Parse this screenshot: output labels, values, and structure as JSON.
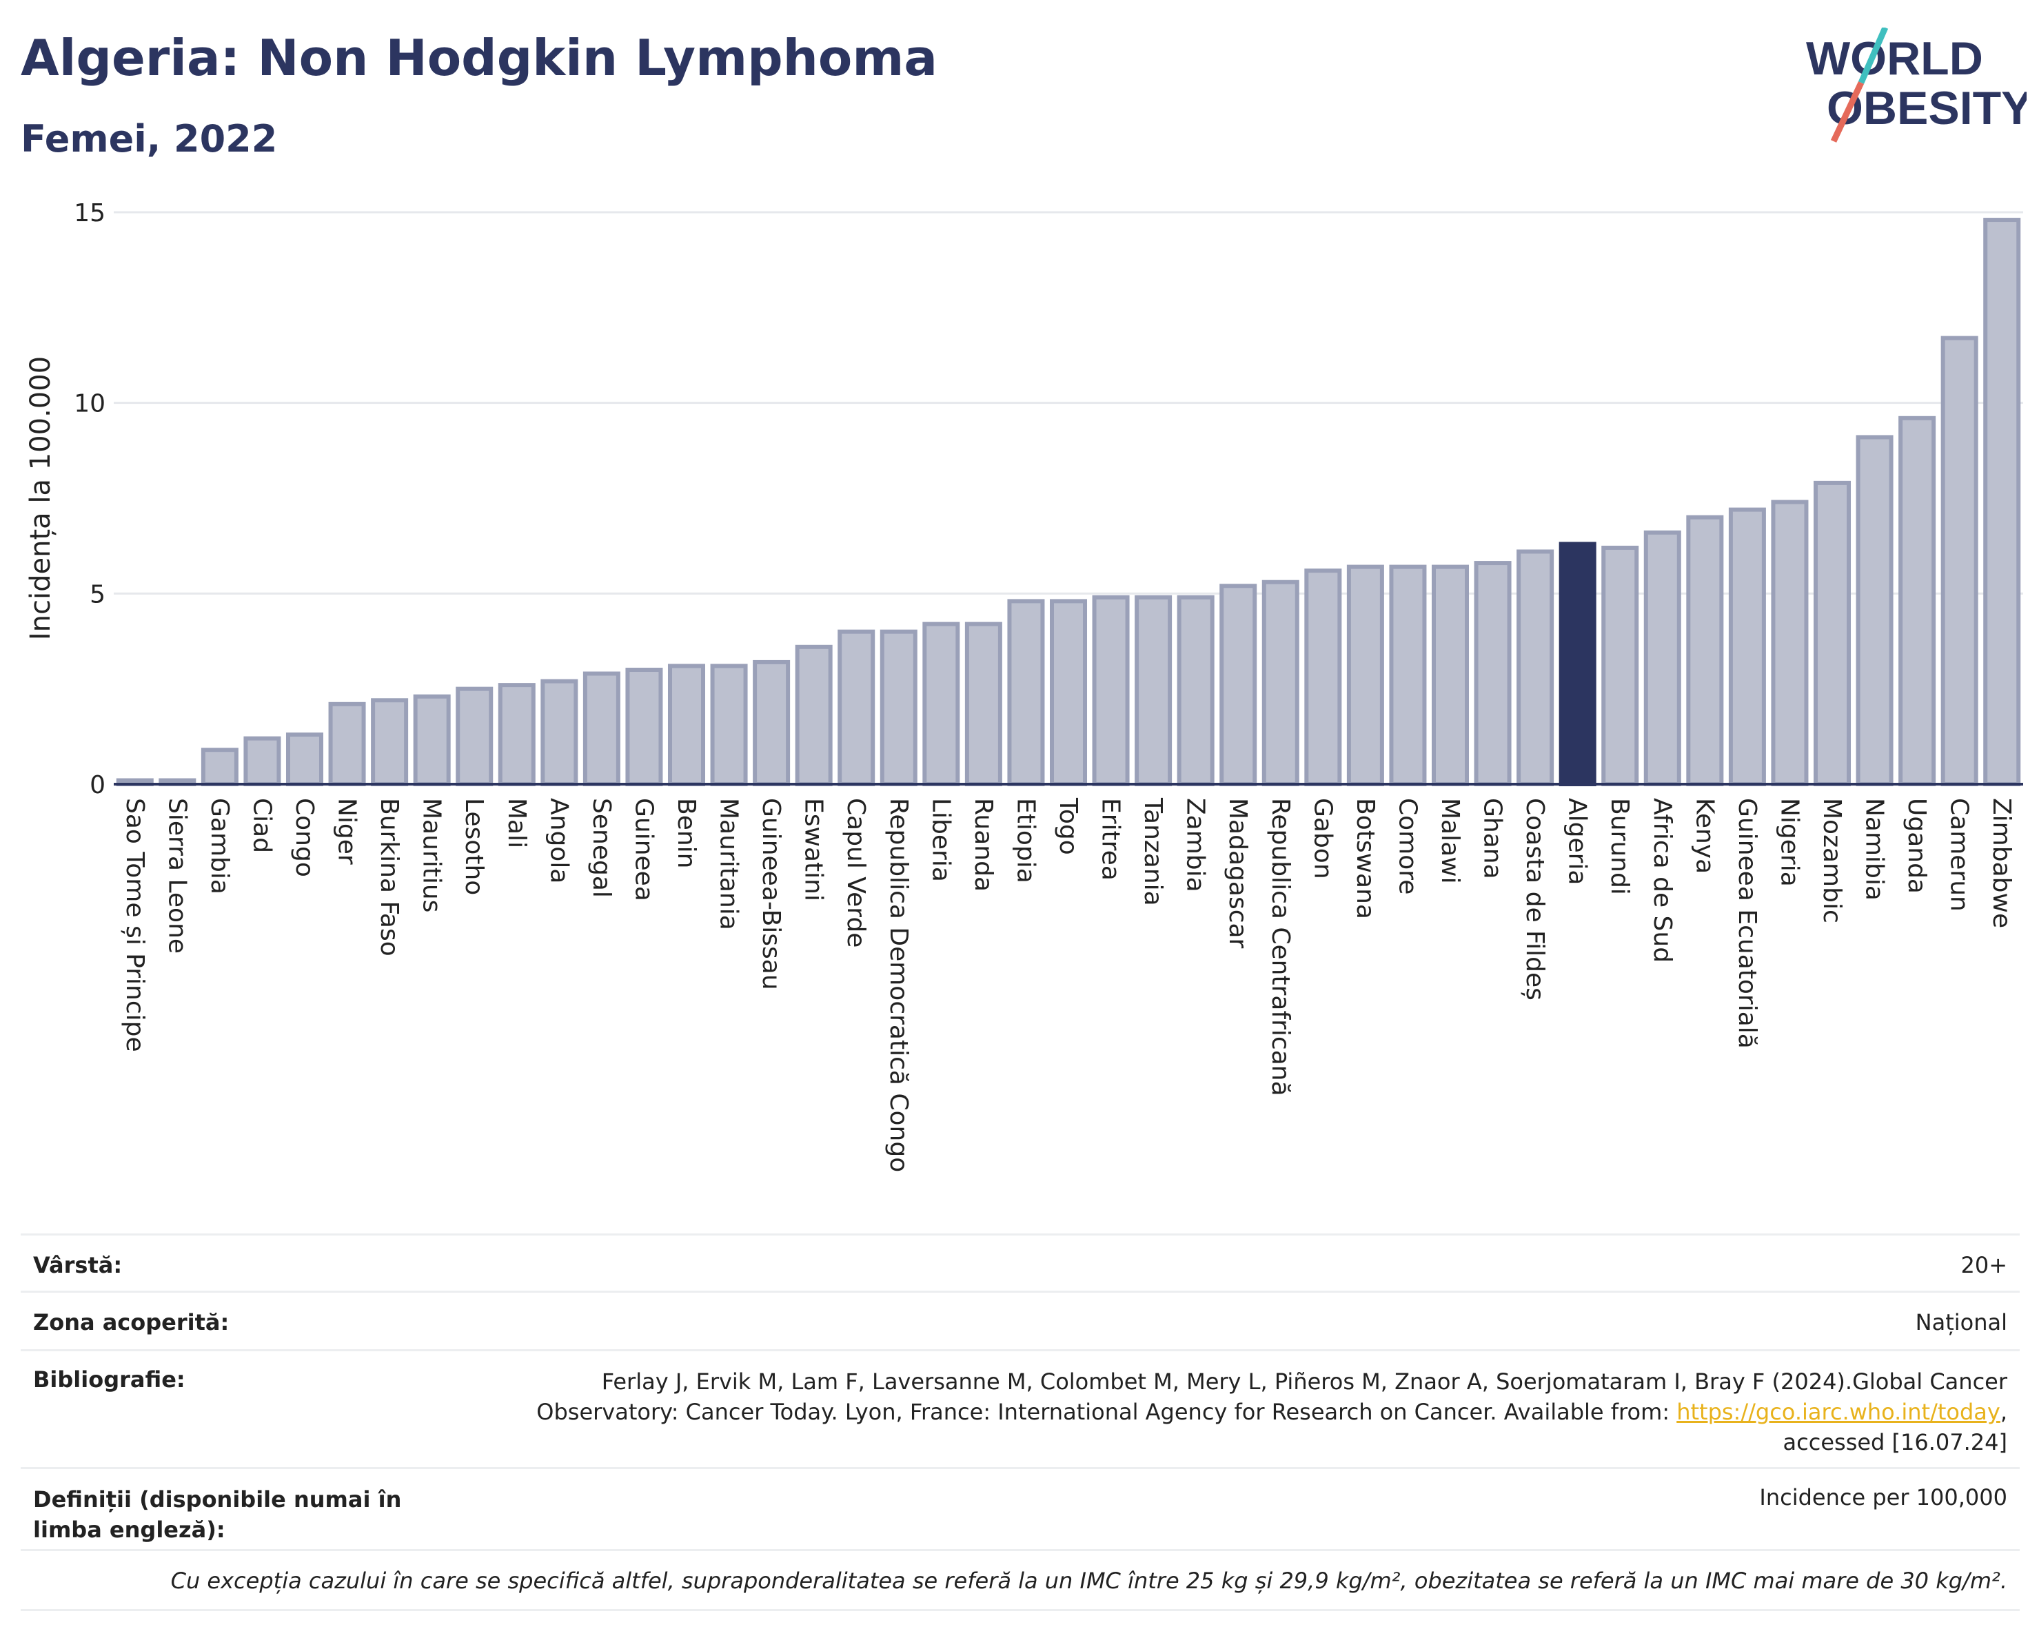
{
  "header": {
    "title": "Algeria: Non Hodgkin Lymphoma",
    "subtitle": "Femei, 2022",
    "logo_line1": "WORLD",
    "logo_line2": "OBESITY"
  },
  "colors": {
    "bar": "#bcc0cf",
    "bar_stroke": "#9aa0b8",
    "highlight": "#2c3560",
    "grid": "#e6e8ec",
    "axis": "#2c3560",
    "logo_teal": "#3fbfbf",
    "logo_red": "#e56a5a"
  },
  "chart_data": {
    "type": "bar",
    "ylabel": "Incidența la 100.000",
    "ylim": [
      0,
      15
    ],
    "yticks": [
      0,
      5,
      10,
      15
    ],
    "grid": true,
    "highlight": "Algeria",
    "categories": [
      "Sao Tome și Principe",
      "Sierra Leone",
      "Gambia",
      "Ciad",
      "Congo",
      "Niger",
      "Burkina Faso",
      "Mauritius",
      "Lesotho",
      "Mali",
      "Angola",
      "Senegal",
      "Guineea",
      "Benin",
      "Mauritania",
      "Guineea-Bissau",
      "Eswatini",
      "Capul Verde",
      "Republica Democratică Congo",
      "Liberia",
      "Ruanda",
      "Etiopia",
      "Togo",
      "Eritrea",
      "Tanzania",
      "Zambia",
      "Madagascar",
      "Republica Centrafricană",
      "Gabon",
      "Botswana",
      "Comore",
      "Malawi",
      "Ghana",
      "Coasta de Fildeș",
      "Algeria",
      "Burundi",
      "Africa de Sud",
      "Kenya",
      "Guineea Ecuatorială",
      "Nigeria",
      "Mozambic",
      "Namibia",
      "Uganda",
      "Camerun",
      "Zimbabwe"
    ],
    "values": [
      0.1,
      0.1,
      0.9,
      1.2,
      1.3,
      2.1,
      2.2,
      2.3,
      2.5,
      2.6,
      2.7,
      2.9,
      3.0,
      3.1,
      3.1,
      3.2,
      3.6,
      4.0,
      4.0,
      4.2,
      4.2,
      4.8,
      4.8,
      4.9,
      4.9,
      4.9,
      5.2,
      5.3,
      5.6,
      5.7,
      5.7,
      5.7,
      5.8,
      6.1,
      6.3,
      6.2,
      6.6,
      7.0,
      7.2,
      7.4,
      7.9,
      9.1,
      9.6,
      11.7,
      14.8
    ]
  },
  "meta": {
    "age_label": "Vârstă:",
    "age_value": "20+",
    "area_label": "Zona acoperită:",
    "area_value": "Național",
    "biblio_label": "Bibliografie:",
    "biblio_text": "Ferlay J, Ervik M, Lam F, Laversanne M, Colombet M, Mery L, Piñeros M, Znaor A, Soerjomataram I, Bray F (2024).Global Cancer Observatory: Cancer Today. Lyon, France: International Agency for Research on Cancer. Available from: ",
    "biblio_link": "https://gco.iarc.who.int/today",
    "biblio_tail": ", accessed [16.07.24]",
    "def_label": "Definiții (disponibile numai în limba engleză):",
    "def_value": "Incidence per 100,000",
    "footnote": "Cu excepția cazului în care se specifică altfel, supraponderalitatea se referă la un IMC între 25 kg și 29,9 kg/m², obezitatea se referă la un IMC mai mare de 30 kg/m²."
  }
}
